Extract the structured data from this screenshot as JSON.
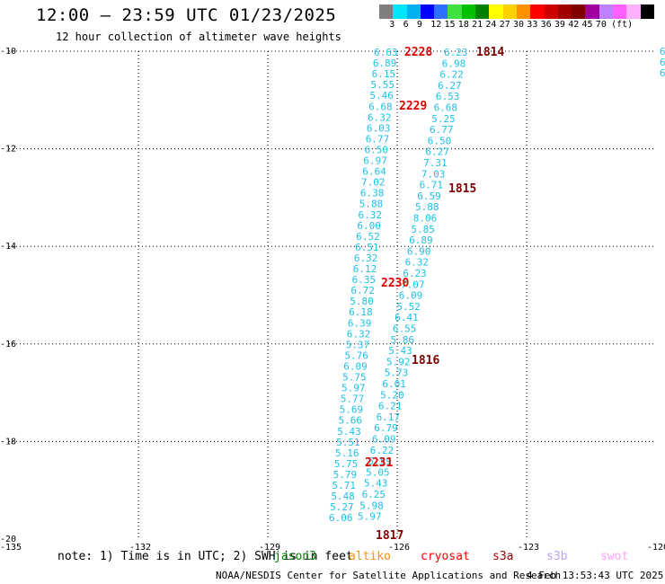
{
  "title": "12:00 – 23:59 UTC 01/23/2025",
  "subtitle": "12 hour collection of altimeter wave heights",
  "colorbar": {
    "colors": [
      "#7f7f7f",
      "#00e5ff",
      "#00b0f0",
      "#0000ff",
      "#3070ff",
      "#40e040",
      "#00c000",
      "#008000",
      "#ffff00",
      "#ffd000",
      "#ff9000",
      "#ff0000",
      "#cc0000",
      "#a00000",
      "#800000",
      "#a000a0",
      "#c080ff",
      "#ff60ff",
      "#ffb0ff",
      "#000000"
    ],
    "labels": [
      "3",
      "6",
      "9",
      "12",
      "15",
      "18",
      "21",
      "24",
      "27",
      "30",
      "33",
      "36",
      "39",
      "42",
      "45",
      "70",
      "(ft)"
    ]
  },
  "axes": {
    "y_labels": [
      "-10",
      "-12",
      "-14",
      "-16",
      "-18",
      "-20"
    ],
    "x_labels": [
      "-135",
      "-132",
      "-129",
      "-126",
      "-123",
      "-120"
    ]
  },
  "track_left": {
    "values": [
      "6.63",
      "6.89",
      "6.15",
      "5.55",
      "5.46",
      "6.68",
      "6.32",
      "6.03",
      "6.77",
      "6.50",
      "6.97",
      "6.64",
      "7.02",
      "6.38",
      "5.88",
      "6.32",
      "6.00",
      "6.52",
      "6.51",
      "6.32",
      "6.12",
      "6.35",
      "6.72",
      "5.80",
      "6.18",
      "6.39",
      "6.32",
      "5.37",
      "5.76",
      "6.09",
      "5.75",
      "5.97",
      "5.77",
      "5.69",
      "5.66",
      "5.43",
      "5.51",
      "5.16",
      "5.75",
      "5.79",
      "5.71",
      "5.48",
      "5.27",
      "6.06"
    ]
  },
  "track_right": {
    "values": [
      "6.23",
      "6.98",
      "6.22",
      "6.27",
      "6.53",
      "6.68",
      "5.25",
      "6.77",
      "6.50",
      "6.27",
      "7.31",
      "7.03",
      "6.71",
      "6.59",
      "5.88",
      "8.06",
      "5.85",
      "6.89",
      "6.90",
      "6.32",
      "6.23",
      "7.07",
      "6.09",
      "5.52",
      "6.41",
      "6.55",
      "5.86",
      "5.43",
      "5.92",
      "5.73",
      "6.01",
      "5.20",
      "6.21",
      "6.17",
      "6.79",
      "6.09",
      "6.22",
      "5.59",
      "5.05",
      "5.43",
      "6.25",
      "5.98",
      "5.97"
    ]
  },
  "edge_values": [
    "6",
    "6",
    "6"
  ],
  "time_labels": [
    {
      "text": "2228",
      "color": "#e00000"
    },
    {
      "text": "1814",
      "color": "#800000"
    },
    {
      "text": "2229",
      "color": "#e00000"
    },
    {
      "text": "1815",
      "color": "#800000"
    },
    {
      "text": "2230",
      "color": "#e00000"
    },
    {
      "text": "1816",
      "color": "#800000"
    },
    {
      "text": "2231",
      "color": "#e00000"
    },
    {
      "text": "1817",
      "color": "#800000"
    }
  ],
  "note": "note: 1) Time is in UTC; 2) SWH is in feet",
  "satellites": [
    {
      "name": "jason3",
      "color": "#008000"
    },
    {
      "name": "altiko",
      "color": "#ff9000"
    },
    {
      "name": "cryosat",
      "color": "#ff0000"
    },
    {
      "name": "s3a",
      "color": "#a00000"
    },
    {
      "name": "s3b",
      "color": "#c0a0ff"
    },
    {
      "name": "swot",
      "color": "#ffa0ff"
    }
  ],
  "footer": "NOAA/NESDIS Center for Satellite Applications and Research",
  "footer_time": "4 Feb 13:53:43 UTC 2025"
}
